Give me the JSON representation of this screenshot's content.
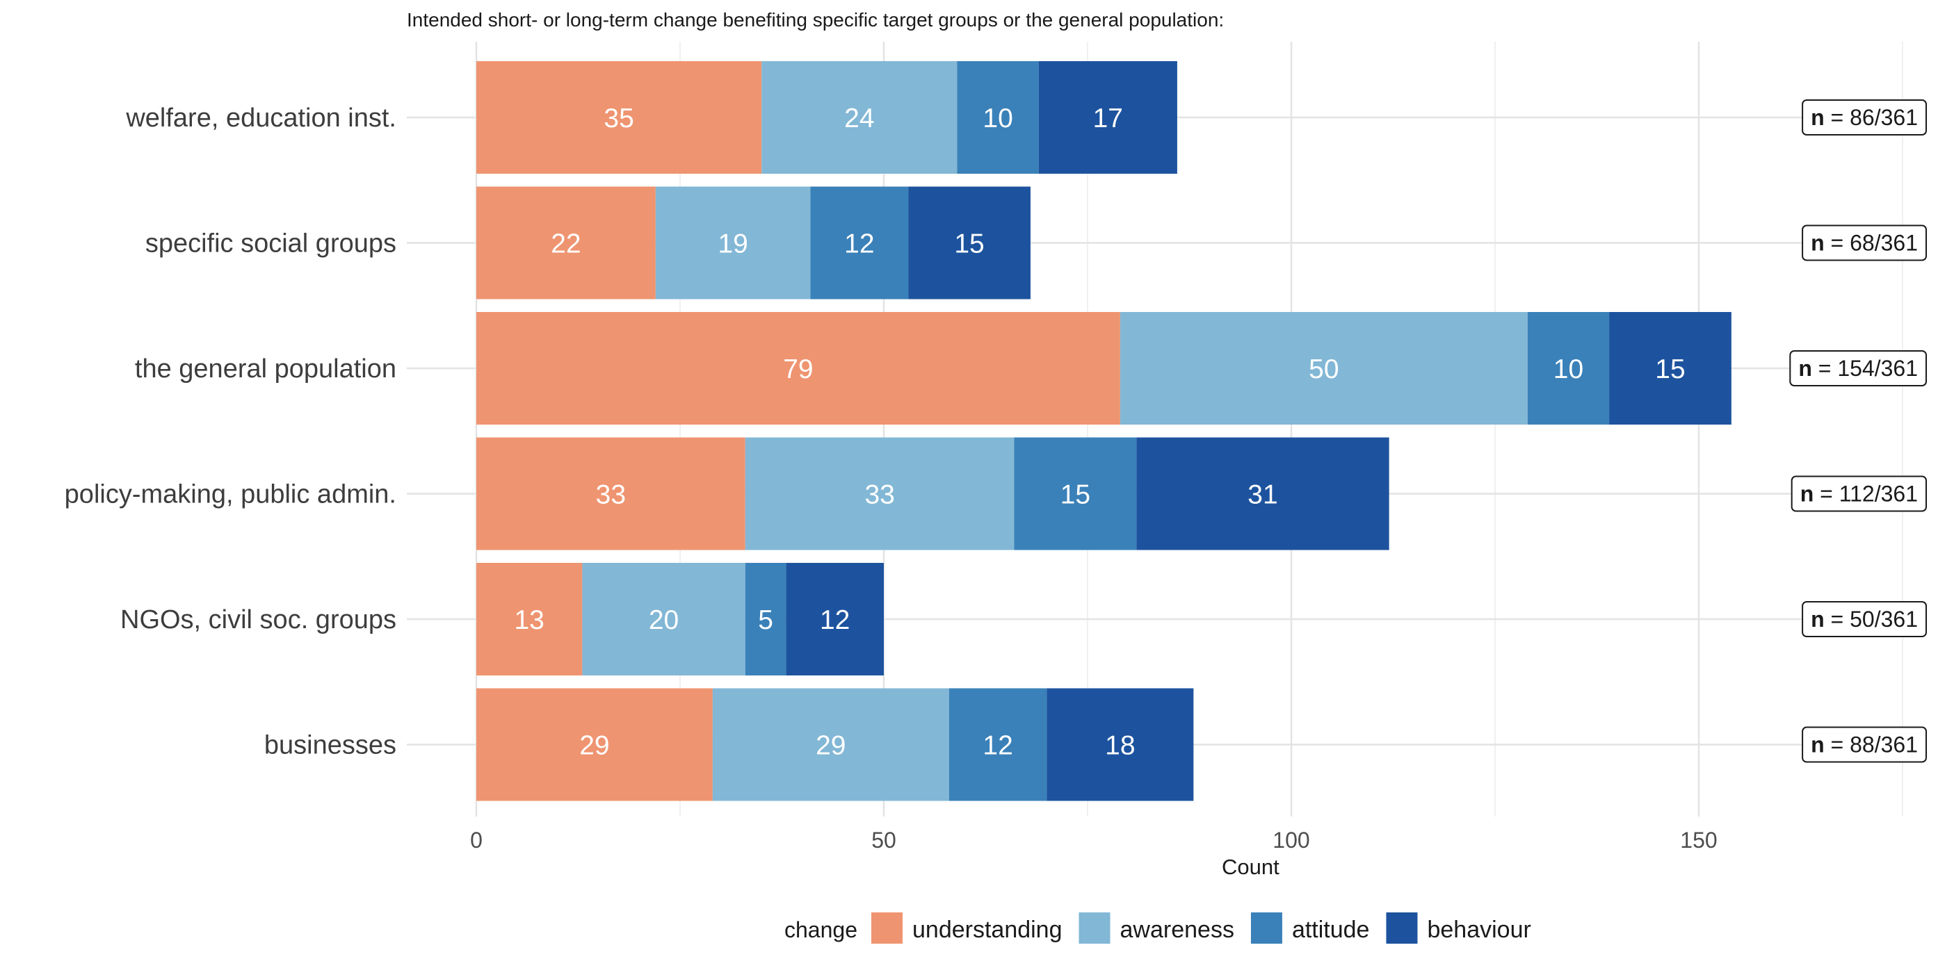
{
  "chart_data": {
    "type": "bar",
    "orientation": "horizontal",
    "stacked": true,
    "title": "Intended short- or long-term change benefiting specific target groups or the general population:",
    "xlabel": "Count",
    "ylabel": "",
    "xlim": [
      0,
      175
    ],
    "x_ticks": [
      0,
      50,
      100,
      150
    ],
    "grid": true,
    "legend_title": "change",
    "legend_position": "bottom",
    "categories": [
      "welfare, education inst.",
      "specific social groups",
      "the general population",
      "policy-making, public admin.",
      "NGOs, civil soc. groups",
      "businesses"
    ],
    "series": [
      {
        "name": "understanding",
        "color": "#EF9470",
        "values": [
          35,
          22,
          79,
          33,
          13,
          29
        ]
      },
      {
        "name": "awareness",
        "color": "#82B7D6",
        "values": [
          24,
          19,
          50,
          33,
          20,
          29
        ]
      },
      {
        "name": "attitude",
        "color": "#3A81B9",
        "values": [
          10,
          12,
          10,
          15,
          5,
          12
        ]
      },
      {
        "name": "behaviour",
        "color": "#1D539E",
        "values": [
          17,
          15,
          15,
          31,
          12,
          18
        ]
      }
    ],
    "n_annotations": {
      "prefix": "n",
      "separator": " = ",
      "values": [
        "86/361",
        "68/361",
        "154/361",
        "112/361",
        "50/361",
        "88/361"
      ]
    }
  }
}
